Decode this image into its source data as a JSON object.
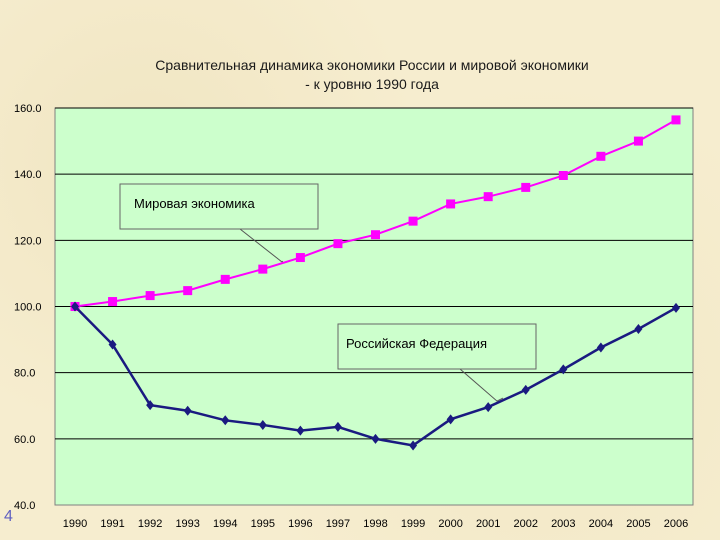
{
  "slide_number": "4",
  "chart_data": {
    "type": "line",
    "title_lines": [
      "Сравнительная динамика экономики России и мировой экономики",
      "- к уровню 1990 года"
    ],
    "xlabel": "",
    "ylabel": "",
    "ylim": [
      40,
      160
    ],
    "yticks": [
      40,
      60,
      80,
      100,
      120,
      140,
      160
    ],
    "ytick_labels": [
      "40.0",
      "60.0",
      "80.0",
      "100.0",
      "120.0",
      "140.0",
      "160.0"
    ],
    "categories": [
      "1990",
      "1991",
      "1992",
      "1993",
      "1994",
      "1995",
      "1996",
      "1997",
      "1998",
      "1999",
      "2000",
      "2001",
      "2002",
      "2003",
      "2004",
      "2005",
      "2006"
    ],
    "grid": true,
    "plot_background": "#ccffcc",
    "series": [
      {
        "name": "Мировая экономика",
        "color": "#ff00ff",
        "marker": "square",
        "values": [
          100.0,
          101.5,
          103.3,
          104.8,
          108.2,
          111.3,
          114.8,
          119.0,
          121.7,
          125.8,
          131.0,
          133.2,
          136.0,
          139.6,
          145.4,
          150.0,
          156.4
        ]
      },
      {
        "name": "Российская Федерация",
        "color": "#1a1a80",
        "marker": "diamond",
        "values": [
          100.0,
          88.5,
          70.2,
          68.5,
          65.6,
          64.2,
          62.5,
          63.6,
          60.0,
          58.0,
          65.9,
          69.6,
          74.8,
          81.0,
          87.6,
          93.2,
          99.6
        ]
      }
    ]
  }
}
